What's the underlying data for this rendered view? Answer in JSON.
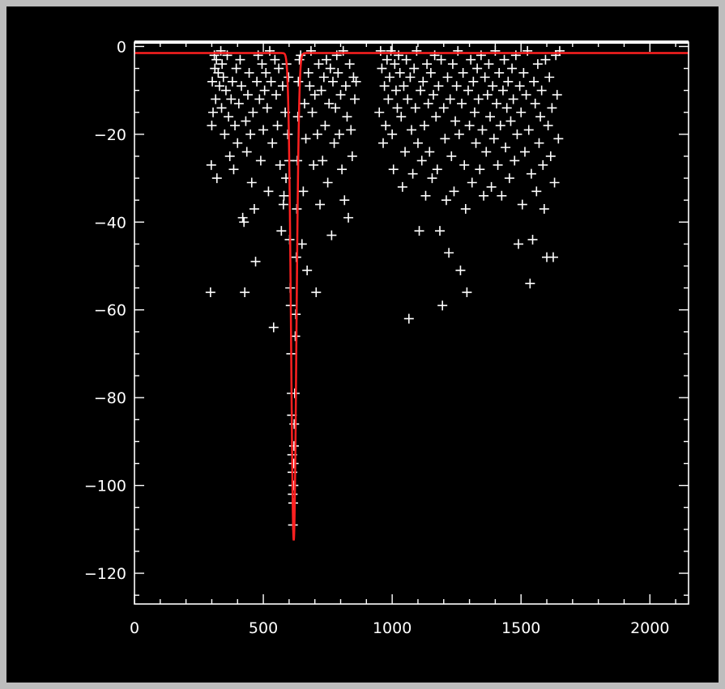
{
  "colors": {
    "background": "#000000",
    "border": "#bdbdbd",
    "axes": "#ffffff",
    "points": "#ffffff",
    "fit": "#ff2020"
  },
  "chart_data": {
    "type": "scatter",
    "title": "",
    "xlabel": "",
    "ylabel": "",
    "xlim": [
      0,
      2150
    ],
    "ylim": [
      -127,
      1
    ],
    "grid": false,
    "x_ticks": [
      0,
      500,
      1000,
      1500,
      2000
    ],
    "x_tick_labels": [
      "0",
      "500",
      "1000",
      "1500",
      "2000"
    ],
    "y_ticks": [
      0,
      -20,
      -40,
      -60,
      -80,
      -100,
      -120
    ],
    "y_tick_labels": [
      "0",
      "−20",
      "−40",
      "−60",
      "−80",
      "−100",
      "−120"
    ],
    "marker": "+",
    "series": [
      {
        "points": [
          [
            295,
            -56
          ],
          [
            298,
            -27
          ],
          [
            300,
            -18
          ],
          [
            302,
            -8
          ],
          [
            305,
            -15
          ],
          [
            310,
            -2
          ],
          [
            312,
            -5
          ],
          [
            315,
            -12
          ],
          [
            318,
            -3
          ],
          [
            320,
            -30
          ],
          [
            325,
            -6
          ],
          [
            330,
            -9
          ],
          [
            335,
            -1
          ],
          [
            338,
            -14
          ],
          [
            340,
            -4
          ],
          [
            345,
            -7
          ],
          [
            350,
            -20
          ],
          [
            355,
            -10
          ],
          [
            360,
            -2
          ],
          [
            365,
            -16
          ],
          [
            370,
            -25
          ],
          [
            375,
            -12
          ],
          [
            380,
            -8
          ],
          [
            385,
            -28
          ],
          [
            390,
            -18
          ],
          [
            395,
            -5
          ],
          [
            400,
            -22
          ],
          [
            405,
            -13
          ],
          [
            410,
            -3
          ],
          [
            415,
            -9
          ],
          [
            420,
            -39
          ],
          [
            425,
            -40
          ],
          [
            428,
            -56
          ],
          [
            432,
            -17
          ],
          [
            436,
            -24
          ],
          [
            440,
            -11
          ],
          [
            445,
            -6
          ],
          [
            450,
            -20
          ],
          [
            455,
            -31
          ],
          [
            460,
            -15
          ],
          [
            465,
            -37
          ],
          [
            470,
            -49
          ],
          [
            475,
            -8
          ],
          [
            480,
            -2
          ],
          [
            485,
            -12
          ],
          [
            490,
            -26
          ],
          [
            495,
            -4
          ],
          [
            500,
            -19
          ],
          [
            505,
            -10
          ],
          [
            510,
            -6
          ],
          [
            515,
            -14
          ],
          [
            520,
            -33
          ],
          [
            525,
            -1
          ],
          [
            530,
            -8
          ],
          [
            535,
            -22
          ],
          [
            540,
            -64
          ],
          [
            545,
            -3
          ],
          [
            550,
            -11
          ],
          [
            555,
            -18
          ],
          [
            560,
            -5
          ],
          [
            565,
            -27
          ],
          [
            570,
            -42
          ],
          [
            575,
            -9
          ],
          [
            578,
            -36
          ],
          [
            580,
            -34
          ],
          [
            585,
            -15
          ],
          [
            588,
            -30
          ],
          [
            590,
            -4
          ],
          [
            595,
            -20
          ],
          [
            598,
            -7
          ],
          [
            600,
            -26
          ],
          [
            602,
            -44
          ],
          [
            604,
            -55
          ],
          [
            606,
            -59
          ],
          [
            608,
            -70
          ],
          [
            610,
            -79
          ],
          [
            611,
            -84
          ],
          [
            612,
            -93
          ],
          [
            613,
            -97
          ],
          [
            614,
            -102
          ],
          [
            615,
            -109
          ],
          [
            616,
            -104
          ],
          [
            617,
            -100
          ],
          [
            618,
            -95
          ],
          [
            619,
            -91
          ],
          [
            620,
            -86
          ],
          [
            622,
            -79
          ],
          [
            624,
            -66
          ],
          [
            626,
            -61
          ],
          [
            628,
            -48
          ],
          [
            630,
            -37
          ],
          [
            632,
            -26
          ],
          [
            634,
            -16
          ],
          [
            636,
            -8
          ],
          [
            640,
            -3
          ],
          [
            645,
            -2
          ],
          [
            650,
            -45
          ],
          [
            655,
            -33
          ],
          [
            660,
            -13
          ],
          [
            665,
            -21
          ],
          [
            670,
            -51
          ],
          [
            675,
            -6
          ],
          [
            680,
            -9
          ],
          [
            685,
            -1
          ],
          [
            690,
            -15
          ],
          [
            695,
            -27
          ],
          [
            700,
            -11
          ],
          [
            705,
            -56
          ],
          [
            710,
            -20
          ],
          [
            715,
            -4
          ],
          [
            720,
            -36
          ],
          [
            725,
            -10
          ],
          [
            730,
            -26
          ],
          [
            735,
            -7
          ],
          [
            740,
            -18
          ],
          [
            745,
            -3
          ],
          [
            750,
            -31
          ],
          [
            755,
            -13
          ],
          [
            760,
            -5
          ],
          [
            765,
            -43
          ],
          [
            770,
            -8
          ],
          [
            775,
            -22
          ],
          [
            780,
            -14
          ],
          [
            785,
            -2
          ],
          [
            790,
            -6
          ],
          [
            795,
            -20
          ],
          [
            800,
            -11
          ],
          [
            805,
            -28
          ],
          [
            810,
            -1
          ],
          [
            815,
            -35
          ],
          [
            820,
            -9
          ],
          [
            825,
            -16
          ],
          [
            830,
            -39
          ],
          [
            835,
            -4
          ],
          [
            840,
            -19
          ],
          [
            845,
            -25
          ],
          [
            850,
            -7
          ],
          [
            855,
            -12
          ],
          [
            860,
            -8
          ],
          [
            950,
            -15
          ],
          [
            955,
            -1
          ],
          [
            960,
            -5
          ],
          [
            965,
            -22
          ],
          [
            970,
            -9
          ],
          [
            975,
            -18
          ],
          [
            980,
            -3
          ],
          [
            985,
            -12
          ],
          [
            990,
            -7
          ],
          [
            995,
            -1
          ],
          [
            1000,
            -20
          ],
          [
            1005,
            -28
          ],
          [
            1010,
            -4
          ],
          [
            1015,
            -10
          ],
          [
            1020,
            -14
          ],
          [
            1025,
            -2
          ],
          [
            1030,
            -6
          ],
          [
            1035,
            -16
          ],
          [
            1040,
            -32
          ],
          [
            1045,
            -9
          ],
          [
            1050,
            -24
          ],
          [
            1055,
            -3
          ],
          [
            1060,
            -12
          ],
          [
            1065,
            -62
          ],
          [
            1070,
            -7
          ],
          [
            1075,
            -19
          ],
          [
            1080,
            -29
          ],
          [
            1085,
            -5
          ],
          [
            1090,
            -14
          ],
          [
            1095,
            -1
          ],
          [
            1100,
            -22
          ],
          [
            1105,
            -42
          ],
          [
            1110,
            -10
          ],
          [
            1115,
            -26
          ],
          [
            1120,
            -8
          ],
          [
            1125,
            -18
          ],
          [
            1130,
            -34
          ],
          [
            1135,
            -4
          ],
          [
            1140,
            -13
          ],
          [
            1145,
            -24
          ],
          [
            1150,
            -6
          ],
          [
            1155,
            -30
          ],
          [
            1160,
            -11
          ],
          [
            1165,
            -2
          ],
          [
            1170,
            -16
          ],
          [
            1175,
            -28
          ],
          [
            1180,
            -9
          ],
          [
            1185,
            -42
          ],
          [
            1190,
            -3
          ],
          [
            1195,
            -59
          ],
          [
            1200,
            -14
          ],
          [
            1205,
            -21
          ],
          [
            1210,
            -35
          ],
          [
            1215,
            -7
          ],
          [
            1220,
            -47
          ],
          [
            1225,
            -12
          ],
          [
            1230,
            -25
          ],
          [
            1235,
            -4
          ],
          [
            1240,
            -33
          ],
          [
            1245,
            -17
          ],
          [
            1250,
            -9
          ],
          [
            1255,
            -1
          ],
          [
            1260,
            -20
          ],
          [
            1265,
            -51
          ],
          [
            1270,
            -13
          ],
          [
            1275,
            -6
          ],
          [
            1280,
            -27
          ],
          [
            1285,
            -37
          ],
          [
            1290,
            -56
          ],
          [
            1295,
            -10
          ],
          [
            1300,
            -18
          ],
          [
            1305,
            -3
          ],
          [
            1310,
            -31
          ],
          [
            1315,
            -8
          ],
          [
            1320,
            -15
          ],
          [
            1325,
            -22
          ],
          [
            1330,
            -5
          ],
          [
            1335,
            -12
          ],
          [
            1340,
            -28
          ],
          [
            1345,
            -2
          ],
          [
            1350,
            -19
          ],
          [
            1355,
            -34
          ],
          [
            1360,
            -7
          ],
          [
            1365,
            -24
          ],
          [
            1370,
            -11
          ],
          [
            1375,
            -4
          ],
          [
            1380,
            -16
          ],
          [
            1385,
            -32
          ],
          [
            1390,
            -9
          ],
          [
            1395,
            -21
          ],
          [
            1400,
            -1
          ],
          [
            1405,
            -13
          ],
          [
            1410,
            -27
          ],
          [
            1415,
            -6
          ],
          [
            1420,
            -18
          ],
          [
            1425,
            -34
          ],
          [
            1430,
            -10
          ],
          [
            1435,
            -3
          ],
          [
            1440,
            -23
          ],
          [
            1445,
            -14
          ],
          [
            1450,
            -8
          ],
          [
            1455,
            -30
          ],
          [
            1460,
            -17
          ],
          [
            1465,
            -5
          ],
          [
            1470,
            -12
          ],
          [
            1475,
            -26
          ],
          [
            1480,
            -2
          ],
          [
            1485,
            -20
          ],
          [
            1490,
            -45
          ],
          [
            1495,
            -9
          ],
          [
            1500,
            -15
          ],
          [
            1505,
            -36
          ],
          [
            1510,
            -6
          ],
          [
            1515,
            -24
          ],
          [
            1520,
            -11
          ],
          [
            1525,
            -1
          ],
          [
            1530,
            -19
          ],
          [
            1535,
            -54
          ],
          [
            1540,
            -29
          ],
          [
            1545,
            -44
          ],
          [
            1550,
            -8
          ],
          [
            1555,
            -13
          ],
          [
            1560,
            -33
          ],
          [
            1565,
            -4
          ],
          [
            1570,
            -22
          ],
          [
            1575,
            -16
          ],
          [
            1580,
            -10
          ],
          [
            1585,
            -27
          ],
          [
            1590,
            -37
          ],
          [
            1595,
            -3
          ],
          [
            1600,
            -48
          ],
          [
            1605,
            -18
          ],
          [
            1610,
            -7
          ],
          [
            1615,
            -25
          ],
          [
            1620,
            -14
          ],
          [
            1625,
            -48
          ],
          [
            1630,
            -31
          ],
          [
            1635,
            -2
          ],
          [
            1640,
            -11
          ],
          [
            1645,
            -21
          ],
          [
            1650,
            -1
          ]
        ]
      }
    ],
    "fit_curve": {
      "baseline": -1.5,
      "center": 618,
      "depth": -111,
      "width": 10
    }
  }
}
